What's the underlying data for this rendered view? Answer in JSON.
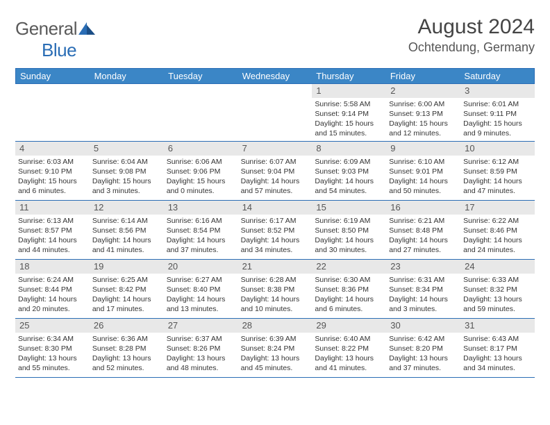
{
  "logo": {
    "general": "General",
    "blue": "Blue",
    "color_gray": "#5a5a5a",
    "color_blue": "#2a6db5"
  },
  "title": "August 2024",
  "location": "Ochtendung, Germany",
  "day_headers": [
    "Sunday",
    "Monday",
    "Tuesday",
    "Wednesday",
    "Thursday",
    "Friday",
    "Saturday"
  ],
  "header_bg": "#3b86c6",
  "daynum_bg": "#e8e8e8",
  "border_color": "#2a6db5",
  "weeks": [
    [
      null,
      null,
      null,
      null,
      {
        "n": "1",
        "sr": "5:58 AM",
        "ss": "9:14 PM",
        "dl": "15 hours and 15 minutes."
      },
      {
        "n": "2",
        "sr": "6:00 AM",
        "ss": "9:13 PM",
        "dl": "15 hours and 12 minutes."
      },
      {
        "n": "3",
        "sr": "6:01 AM",
        "ss": "9:11 PM",
        "dl": "15 hours and 9 minutes."
      }
    ],
    [
      {
        "n": "4",
        "sr": "6:03 AM",
        "ss": "9:10 PM",
        "dl": "15 hours and 6 minutes."
      },
      {
        "n": "5",
        "sr": "6:04 AM",
        "ss": "9:08 PM",
        "dl": "15 hours and 3 minutes."
      },
      {
        "n": "6",
        "sr": "6:06 AM",
        "ss": "9:06 PM",
        "dl": "15 hours and 0 minutes."
      },
      {
        "n": "7",
        "sr": "6:07 AM",
        "ss": "9:04 PM",
        "dl": "14 hours and 57 minutes."
      },
      {
        "n": "8",
        "sr": "6:09 AM",
        "ss": "9:03 PM",
        "dl": "14 hours and 54 minutes."
      },
      {
        "n": "9",
        "sr": "6:10 AM",
        "ss": "9:01 PM",
        "dl": "14 hours and 50 minutes."
      },
      {
        "n": "10",
        "sr": "6:12 AM",
        "ss": "8:59 PM",
        "dl": "14 hours and 47 minutes."
      }
    ],
    [
      {
        "n": "11",
        "sr": "6:13 AM",
        "ss": "8:57 PM",
        "dl": "14 hours and 44 minutes."
      },
      {
        "n": "12",
        "sr": "6:14 AM",
        "ss": "8:56 PM",
        "dl": "14 hours and 41 minutes."
      },
      {
        "n": "13",
        "sr": "6:16 AM",
        "ss": "8:54 PM",
        "dl": "14 hours and 37 minutes."
      },
      {
        "n": "14",
        "sr": "6:17 AM",
        "ss": "8:52 PM",
        "dl": "14 hours and 34 minutes."
      },
      {
        "n": "15",
        "sr": "6:19 AM",
        "ss": "8:50 PM",
        "dl": "14 hours and 30 minutes."
      },
      {
        "n": "16",
        "sr": "6:21 AM",
        "ss": "8:48 PM",
        "dl": "14 hours and 27 minutes."
      },
      {
        "n": "17",
        "sr": "6:22 AM",
        "ss": "8:46 PM",
        "dl": "14 hours and 24 minutes."
      }
    ],
    [
      {
        "n": "18",
        "sr": "6:24 AM",
        "ss": "8:44 PM",
        "dl": "14 hours and 20 minutes."
      },
      {
        "n": "19",
        "sr": "6:25 AM",
        "ss": "8:42 PM",
        "dl": "14 hours and 17 minutes."
      },
      {
        "n": "20",
        "sr": "6:27 AM",
        "ss": "8:40 PM",
        "dl": "14 hours and 13 minutes."
      },
      {
        "n": "21",
        "sr": "6:28 AM",
        "ss": "8:38 PM",
        "dl": "14 hours and 10 minutes."
      },
      {
        "n": "22",
        "sr": "6:30 AM",
        "ss": "8:36 PM",
        "dl": "14 hours and 6 minutes."
      },
      {
        "n": "23",
        "sr": "6:31 AM",
        "ss": "8:34 PM",
        "dl": "14 hours and 3 minutes."
      },
      {
        "n": "24",
        "sr": "6:33 AM",
        "ss": "8:32 PM",
        "dl": "13 hours and 59 minutes."
      }
    ],
    [
      {
        "n": "25",
        "sr": "6:34 AM",
        "ss": "8:30 PM",
        "dl": "13 hours and 55 minutes."
      },
      {
        "n": "26",
        "sr": "6:36 AM",
        "ss": "8:28 PM",
        "dl": "13 hours and 52 minutes."
      },
      {
        "n": "27",
        "sr": "6:37 AM",
        "ss": "8:26 PM",
        "dl": "13 hours and 48 minutes."
      },
      {
        "n": "28",
        "sr": "6:39 AM",
        "ss": "8:24 PM",
        "dl": "13 hours and 45 minutes."
      },
      {
        "n": "29",
        "sr": "6:40 AM",
        "ss": "8:22 PM",
        "dl": "13 hours and 41 minutes."
      },
      {
        "n": "30",
        "sr": "6:42 AM",
        "ss": "8:20 PM",
        "dl": "13 hours and 37 minutes."
      },
      {
        "n": "31",
        "sr": "6:43 AM",
        "ss": "8:17 PM",
        "dl": "13 hours and 34 minutes."
      }
    ]
  ],
  "labels": {
    "sunrise": "Sunrise: ",
    "sunset": "Sunset: ",
    "daylight": "Daylight: "
  }
}
